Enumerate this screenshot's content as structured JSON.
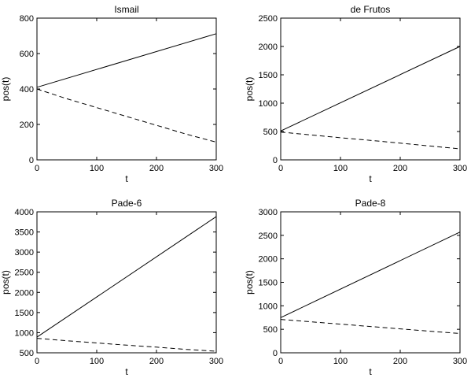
{
  "chart_data": [
    {
      "type": "line",
      "title": "Ismail",
      "xlabel": "t",
      "ylabel": "pos(t)",
      "xlim": [
        0,
        300
      ],
      "ylim": [
        0,
        800
      ],
      "xticks": [
        "0",
        "100",
        "200",
        "300"
      ],
      "yticks": [
        "0",
        "200",
        "400",
        "600",
        "800"
      ],
      "grid": false,
      "series": [
        {
          "style": "solid",
          "x": [
            0,
            300
          ],
          "y": [
            410,
            712
          ]
        },
        {
          "style": "dashed",
          "x": [
            0,
            50,
            100,
            150,
            200,
            250,
            300
          ],
          "y": [
            400,
            345,
            295,
            245,
            195,
            145,
            100
          ]
        }
      ]
    },
    {
      "type": "line",
      "title": "de Frutos",
      "xlabel": "t",
      "ylabel": "pos(t)",
      "xlim": [
        0,
        300
      ],
      "ylim": [
        0,
        2500
      ],
      "xticks": [
        "0",
        "100",
        "200",
        "300"
      ],
      "yticks": [
        "0",
        "500",
        "1000",
        "1500",
        "2000",
        "2500"
      ],
      "grid": false,
      "series": [
        {
          "style": "solid",
          "x": [
            0,
            300
          ],
          "y": [
            510,
            2000
          ]
        },
        {
          "style": "dashed",
          "x": [
            0,
            50,
            100,
            150,
            200,
            250,
            300
          ],
          "y": [
            490,
            440,
            390,
            345,
            295,
            245,
            195
          ]
        }
      ]
    },
    {
      "type": "line",
      "title": "Pade-6",
      "xlabel": "t",
      "ylabel": "pos(t)",
      "xlim": [
        0,
        300
      ],
      "ylim": [
        500,
        4000
      ],
      "xticks": [
        "0",
        "100",
        "200",
        "300"
      ],
      "yticks": [
        "500",
        "1000",
        "1500",
        "2000",
        "2500",
        "3000",
        "3500",
        "4000"
      ],
      "grid": false,
      "series": [
        {
          "style": "solid",
          "x": [
            0,
            300
          ],
          "y": [
            890,
            3880
          ]
        },
        {
          "style": "dashed",
          "x": [
            0,
            50,
            100,
            150,
            200,
            250,
            300
          ],
          "y": [
            860,
            800,
            745,
            690,
            640,
            585,
            540
          ]
        }
      ]
    },
    {
      "type": "line",
      "title": "Pade-8",
      "xlabel": "t",
      "ylabel": "pos(t)",
      "xlim": [
        0,
        300
      ],
      "ylim": [
        0,
        3000
      ],
      "xticks": [
        "0",
        "100",
        "200",
        "300"
      ],
      "yticks": [
        "0",
        "500",
        "1000",
        "1500",
        "2000",
        "2500",
        "3000"
      ],
      "grid": false,
      "series": [
        {
          "style": "solid",
          "x": [
            0,
            300
          ],
          "y": [
            750,
            2570
          ]
        },
        {
          "style": "dashed",
          "x": [
            0,
            50,
            100,
            150,
            200,
            250,
            300
          ],
          "y": [
            710,
            660,
            610,
            560,
            510,
            460,
            410
          ]
        }
      ]
    }
  ]
}
